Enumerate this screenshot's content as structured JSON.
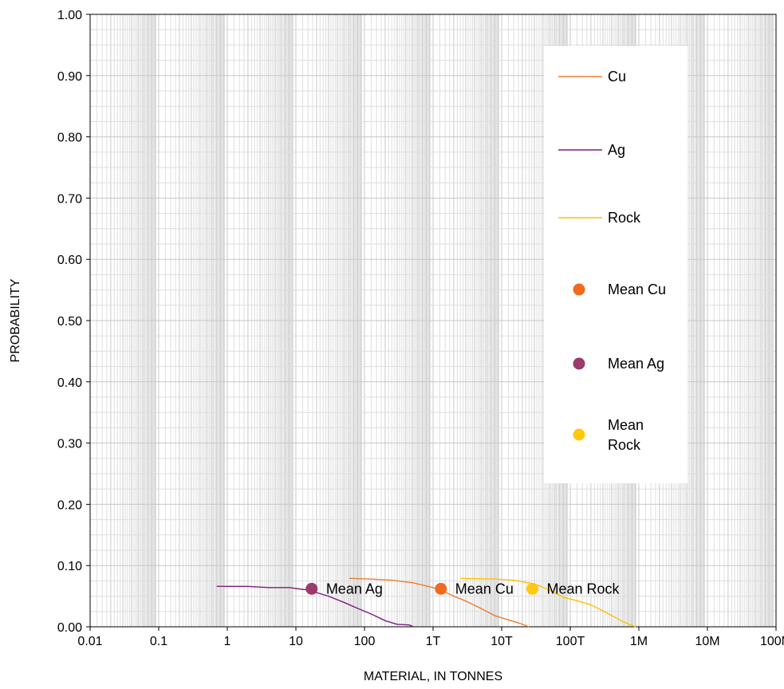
{
  "chart_data": {
    "type": "line",
    "xlabel": "MATERIAL, IN TONNES",
    "ylabel": "PROBABILITY",
    "x_scale": "log",
    "xlim": [
      0.01,
      100000000
    ],
    "ylim": [
      0,
      1
    ],
    "grid": true,
    "legend_position": "top-right",
    "x_ticks": [
      {
        "value": 0.01,
        "label": "0.01"
      },
      {
        "value": 0.1,
        "label": "0.1"
      },
      {
        "value": 1,
        "label": "1"
      },
      {
        "value": 10,
        "label": "10"
      },
      {
        "value": 100,
        "label": "100"
      },
      {
        "value": 1000,
        "label": "1T"
      },
      {
        "value": 10000,
        "label": "10T"
      },
      {
        "value": 100000,
        "label": "100T"
      },
      {
        "value": 1000000,
        "label": "1M"
      },
      {
        "value": 10000000,
        "label": "10M"
      },
      {
        "value": 100000000,
        "label": "100M"
      }
    ],
    "y_ticks": [
      {
        "value": 0.0,
        "label": "0.00"
      },
      {
        "value": 0.1,
        "label": "0.10"
      },
      {
        "value": 0.2,
        "label": "0.20"
      },
      {
        "value": 0.3,
        "label": "0.30"
      },
      {
        "value": 0.4,
        "label": "0.40"
      },
      {
        "value": 0.5,
        "label": "0.50"
      },
      {
        "value": 0.6,
        "label": "0.60"
      },
      {
        "value": 0.7,
        "label": "0.70"
      },
      {
        "value": 0.8,
        "label": "0.80"
      },
      {
        "value": 0.9,
        "label": "0.90"
      },
      {
        "value": 1.0,
        "label": "1.00"
      }
    ],
    "series": [
      {
        "name": "Cu",
        "color": "#ED7D31",
        "points": [
          [
            60,
            0.079
          ],
          [
            120,
            0.078
          ],
          [
            250,
            0.076
          ],
          [
            500,
            0.072
          ],
          [
            1000,
            0.064
          ],
          [
            1300,
            0.06
          ],
          [
            2000,
            0.05
          ],
          [
            3000,
            0.042
          ],
          [
            5000,
            0.03
          ],
          [
            8000,
            0.018
          ],
          [
            12000,
            0.012
          ],
          [
            18000,
            0.006
          ],
          [
            25000,
            0.0
          ]
        ]
      },
      {
        "name": "Ag",
        "color": "#7B1F7E",
        "points": [
          [
            0.7,
            0.066
          ],
          [
            2,
            0.066
          ],
          [
            4,
            0.064
          ],
          [
            8,
            0.064
          ],
          [
            15,
            0.06
          ],
          [
            30,
            0.05
          ],
          [
            50,
            0.04
          ],
          [
            80,
            0.03
          ],
          [
            130,
            0.02
          ],
          [
            200,
            0.01
          ],
          [
            300,
            0.004
          ],
          [
            450,
            0.003
          ],
          [
            520,
            0.0
          ]
        ]
      },
      {
        "name": "Rock",
        "color": "#FFC000",
        "points": [
          [
            2500,
            0.079
          ],
          [
            8000,
            0.078
          ],
          [
            15000,
            0.076
          ],
          [
            30000,
            0.07
          ],
          [
            50000,
            0.06
          ],
          [
            80000,
            0.048
          ],
          [
            130000,
            0.042
          ],
          [
            200000,
            0.036
          ],
          [
            350000,
            0.022
          ],
          [
            600000,
            0.008
          ],
          [
            800000,
            0.002
          ],
          [
            900000,
            0.0
          ]
        ]
      }
    ],
    "mean_points": [
      {
        "name": "Mean Cu",
        "label": "Mean Cu",
        "x": 1300,
        "y": 0.062,
        "color": "#F26B1D"
      },
      {
        "name": "Mean Ag",
        "label": "Mean Ag",
        "x": 17,
        "y": 0.062,
        "color": "#9B3A6B"
      },
      {
        "name": "Mean Rock",
        "label": "Mean Rock",
        "x": 28000,
        "y": 0.062,
        "color": "#FFC90E"
      }
    ],
    "legend": [
      {
        "label": "Cu",
        "kind": "line",
        "color": "#ED7D31"
      },
      {
        "label": "Ag",
        "kind": "line",
        "color": "#7B1F7E"
      },
      {
        "label": "Rock",
        "kind": "line",
        "color": "#FFC000"
      },
      {
        "label": "Mean Cu",
        "kind": "marker",
        "color": "#F26B1D"
      },
      {
        "label": "Mean Ag",
        "kind": "marker",
        "color": "#9B3A6B"
      },
      {
        "label": [
          "Mean",
          "Rock"
        ],
        "kind": "marker",
        "color": "#FFC90E"
      }
    ]
  }
}
